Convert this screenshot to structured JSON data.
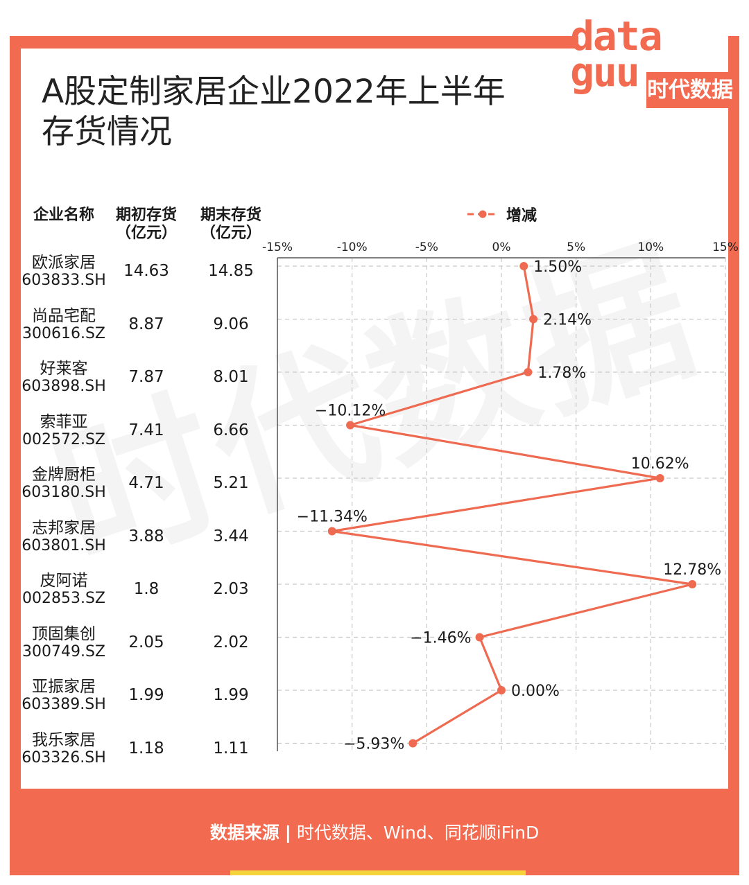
{
  "title": {
    "line1": "A股定制家居企业2022年上半年",
    "line2": "存货情况"
  },
  "logo": {
    "word_line1": "data",
    "word_line2": "guu",
    "label": "时代数据"
  },
  "watermark": "时代数据",
  "columns": {
    "name": "企业名称",
    "begin": {
      "line1": "期初存货",
      "line2": "（亿元）"
    },
    "end": {
      "line1": "期末存货",
      "line2": "（亿元）"
    }
  },
  "rows": [
    {
      "name": "欧派家居",
      "code": "603833.SH",
      "begin": "14.63",
      "end": "14.85"
    },
    {
      "name": "尚品宅配",
      "code": "300616.SZ",
      "begin": "8.87",
      "end": "9.06"
    },
    {
      "name": "好莱客",
      "code": "603898.SH",
      "begin": "7.87",
      "end": "8.01"
    },
    {
      "name": "索菲亚",
      "code": "002572.SZ",
      "begin": "7.41",
      "end": "6.66"
    },
    {
      "name": "金牌厨柜",
      "code": "603180.SH",
      "begin": "4.71",
      "end": "5.21"
    },
    {
      "name": "志邦家居",
      "code": "603801.SH",
      "begin": "3.88",
      "end": "3.44"
    },
    {
      "name": "皮阿诺",
      "code": "002853.SZ",
      "begin": "1.8",
      "end": "2.03"
    },
    {
      "name": "顶固集创",
      "code": "300749.SZ",
      "begin": "2.05",
      "end": "2.02"
    },
    {
      "name": "亚振家居",
      "code": "603389.SH",
      "begin": "1.99",
      "end": "1.99"
    },
    {
      "name": "我乐家居",
      "code": "603326.SH",
      "begin": "1.18",
      "end": "1.11"
    }
  ],
  "chart_data": {
    "type": "line",
    "orientation": "horizontal-values",
    "legend": {
      "label": "增减",
      "position": "top"
    },
    "x_ticks": [
      "-15%",
      "-10%",
      "-5%",
      "0%",
      "5%",
      "10%",
      "15%"
    ],
    "xlim": [
      -15,
      15
    ],
    "grid": true,
    "categories": [
      "欧派家居",
      "尚品宅配",
      "好莱客",
      "索菲亚",
      "金牌厨柜",
      "志邦家居",
      "皮阿诺",
      "顶固集创",
      "亚振家居",
      "我乐家居"
    ],
    "series": [
      {
        "name": "增减",
        "values": [
          1.5,
          2.14,
          1.78,
          -10.12,
          10.62,
          -11.34,
          12.78,
          -1.46,
          0.0,
          -5.93
        ],
        "labels": [
          "1.50%",
          "2.14%",
          "1.78%",
          "−10.12%",
          "10.62%",
          "−11.34%",
          "12.78%",
          "−1.46%",
          "0.00%",
          "−5.93%"
        ],
        "color": "#ee6a50"
      }
    ]
  },
  "footer": {
    "label": "数据来源",
    "sep": "|",
    "text": "时代数据、Wind、同花顺iFinD"
  },
  "colors": {
    "accent": "#f26a4f",
    "line": "#ee6a50",
    "footer_bar": "#f5d33a"
  }
}
